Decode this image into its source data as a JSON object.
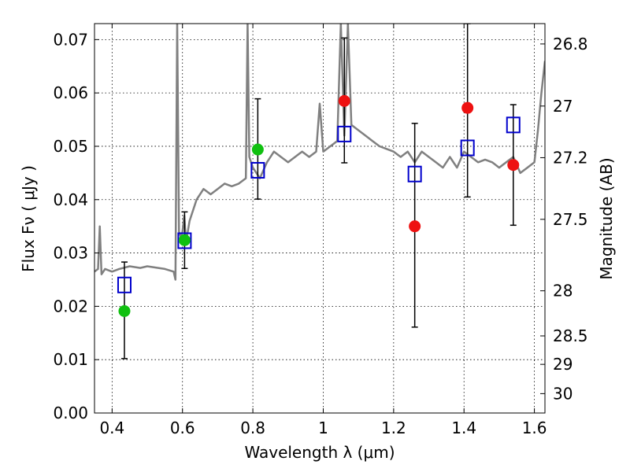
{
  "chart_data": {
    "type": "scatter",
    "xlabel": "Wavelength  λ (μm)",
    "ylabel": "Flux  Fν  ( μJy )",
    "ylabel_right": "Magnitude (AB)",
    "xlim": [
      0.35,
      1.63
    ],
    "ylim": [
      0.0,
      0.073
    ],
    "grid": true,
    "x_ticks": [
      0.4,
      0.6,
      0.8,
      1.0,
      1.2,
      1.4,
      1.6
    ],
    "x_tick_labels": [
      "0.4",
      "0.6",
      "0.8",
      "1",
      "1.2",
      "1.4",
      "1.6"
    ],
    "y_ticks": [
      0.0,
      0.01,
      0.02,
      0.03,
      0.04,
      0.05,
      0.06,
      0.07
    ],
    "y_tick_labels": [
      "0.00",
      "0.01",
      "0.02",
      "0.03",
      "0.04",
      "0.05",
      "0.06",
      "0.07"
    ],
    "right_axis_ticks": [
      {
        "mag": 26.8,
        "label": "26.8"
      },
      {
        "mag": 27.0,
        "label": "27"
      },
      {
        "mag": 27.2,
        "label": "27.2"
      },
      {
        "mag": 27.5,
        "label": "27.5"
      },
      {
        "mag": 28.0,
        "label": "28"
      },
      {
        "mag": 28.5,
        "label": "28.5"
      },
      {
        "mag": 29.0,
        "label": "29"
      },
      {
        "mag": 30.0,
        "label": "30"
      }
    ],
    "series": [
      {
        "name": "model spectrum",
        "kind": "line",
        "color": "#808080",
        "x": [
          0.35,
          0.36,
          0.365,
          0.37,
          0.38,
          0.4,
          0.42,
          0.45,
          0.48,
          0.5,
          0.52,
          0.55,
          0.575,
          0.58,
          0.585,
          0.59,
          0.595,
          0.6,
          0.605,
          0.61,
          0.62,
          0.64,
          0.66,
          0.68,
          0.7,
          0.72,
          0.74,
          0.76,
          0.78,
          0.785,
          0.79,
          0.8,
          0.82,
          0.84,
          0.86,
          0.88,
          0.9,
          0.92,
          0.94,
          0.96,
          0.98,
          0.99,
          1.0,
          1.02,
          1.04,
          1.05,
          1.06,
          1.07,
          1.08,
          1.1,
          1.12,
          1.14,
          1.16,
          1.18,
          1.2,
          1.22,
          1.24,
          1.26,
          1.28,
          1.3,
          1.32,
          1.34,
          1.36,
          1.38,
          1.4,
          1.42,
          1.44,
          1.46,
          1.48,
          1.5,
          1.52,
          1.54,
          1.56,
          1.58,
          1.6,
          1.61,
          1.62,
          1.63
        ],
        "y": [
          0.0265,
          0.027,
          0.035,
          0.026,
          0.027,
          0.0265,
          0.027,
          0.0275,
          0.0272,
          0.0275,
          0.0273,
          0.027,
          0.0265,
          0.025,
          0.073,
          0.034,
          0.033,
          0.034,
          0.037,
          0.032,
          0.036,
          0.04,
          0.042,
          0.041,
          0.042,
          0.043,
          0.0425,
          0.043,
          0.044,
          0.073,
          0.048,
          0.046,
          0.044,
          0.047,
          0.049,
          0.048,
          0.047,
          0.048,
          0.049,
          0.048,
          0.049,
          0.058,
          0.049,
          0.05,
          0.051,
          0.073,
          0.052,
          0.073,
          0.054,
          0.053,
          0.052,
          0.051,
          0.05,
          0.0495,
          0.049,
          0.048,
          0.049,
          0.047,
          0.049,
          0.048,
          0.047,
          0.046,
          0.048,
          0.046,
          0.049,
          0.048,
          0.047,
          0.0475,
          0.047,
          0.046,
          0.047,
          0.048,
          0.045,
          0.046,
          0.047,
          0.053,
          0.06,
          0.066
        ]
      },
      {
        "name": "model photometry",
        "kind": "open-square",
        "color": "#0000cc",
        "x": [
          0.435,
          0.606,
          0.814,
          1.06,
          1.26,
          1.41,
          1.54
        ],
        "y": [
          0.024,
          0.0323,
          0.0455,
          0.0523,
          0.0448,
          0.0497,
          0.054
        ]
      },
      {
        "name": "detections (optical)",
        "kind": "filled-circle",
        "color": "#10c010",
        "x": [
          0.435,
          0.606,
          0.814
        ],
        "y": [
          0.0191,
          0.0324,
          0.0494
        ]
      },
      {
        "name": "detections (near-IR)",
        "kind": "filled-circle",
        "color": "#ee1111",
        "x": [
          1.06,
          1.26,
          1.41,
          1.54
        ],
        "y": [
          0.0585,
          0.035,
          0.0572,
          0.0465
        ]
      }
    ],
    "error_bars": [
      {
        "x": 0.435,
        "ylow": 0.0102,
        "yhigh": 0.0283
      },
      {
        "x": 0.606,
        "ylow": 0.0271,
        "yhigh": 0.0377
      },
      {
        "x": 0.814,
        "ylow": 0.0401,
        "yhigh": 0.0589
      },
      {
        "x": 1.06,
        "ylow": 0.0469,
        "yhigh": 0.0703
      },
      {
        "x": 1.26,
        "ylow": 0.0161,
        "yhigh": 0.0543
      },
      {
        "x": 1.41,
        "ylow": 0.0405,
        "yhigh": 0.073
      },
      {
        "x": 1.54,
        "ylow": 0.0352,
        "yhigh": 0.0578
      }
    ]
  }
}
